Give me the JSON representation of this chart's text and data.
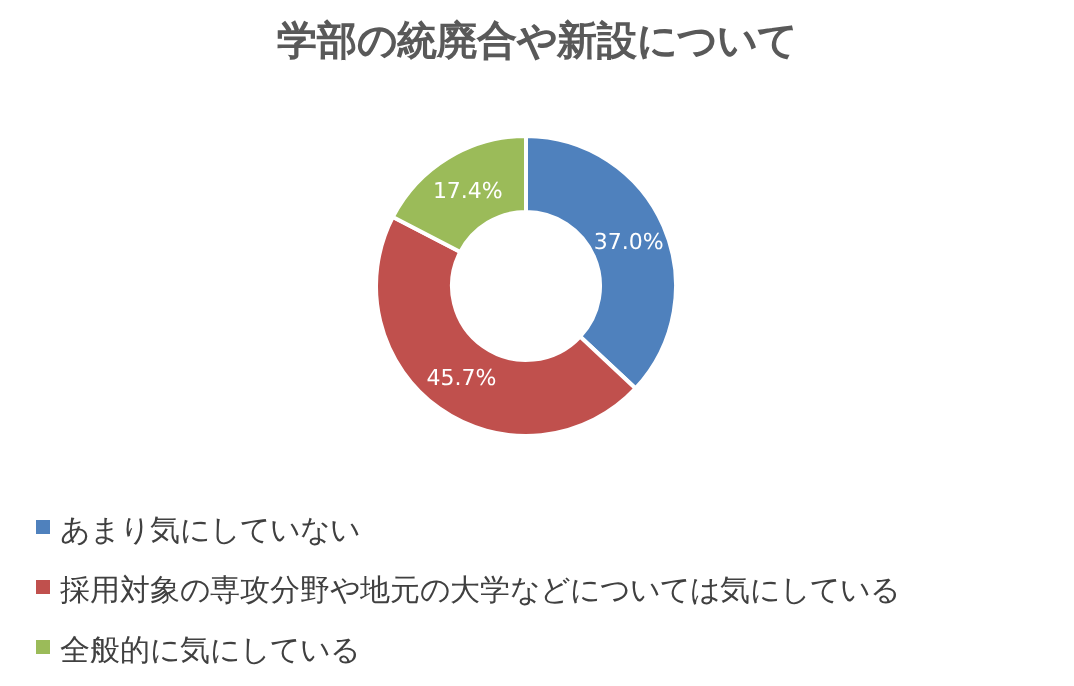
{
  "chart_data": {
    "type": "donut",
    "title": "学部の統廃合や新設について",
    "categories": [
      "あまり気にしていない",
      "採用対象の専攻分野や地元の大学などについては気にしている",
      "全般的に気にしている"
    ],
    "values": [
      37.0,
      45.7,
      17.4
    ],
    "value_labels": [
      "37.0%",
      "45.7%",
      "17.4%"
    ],
    "colors": [
      "#4f81bd",
      "#c0504d",
      "#9bbb59"
    ],
    "legend": "bottom"
  }
}
